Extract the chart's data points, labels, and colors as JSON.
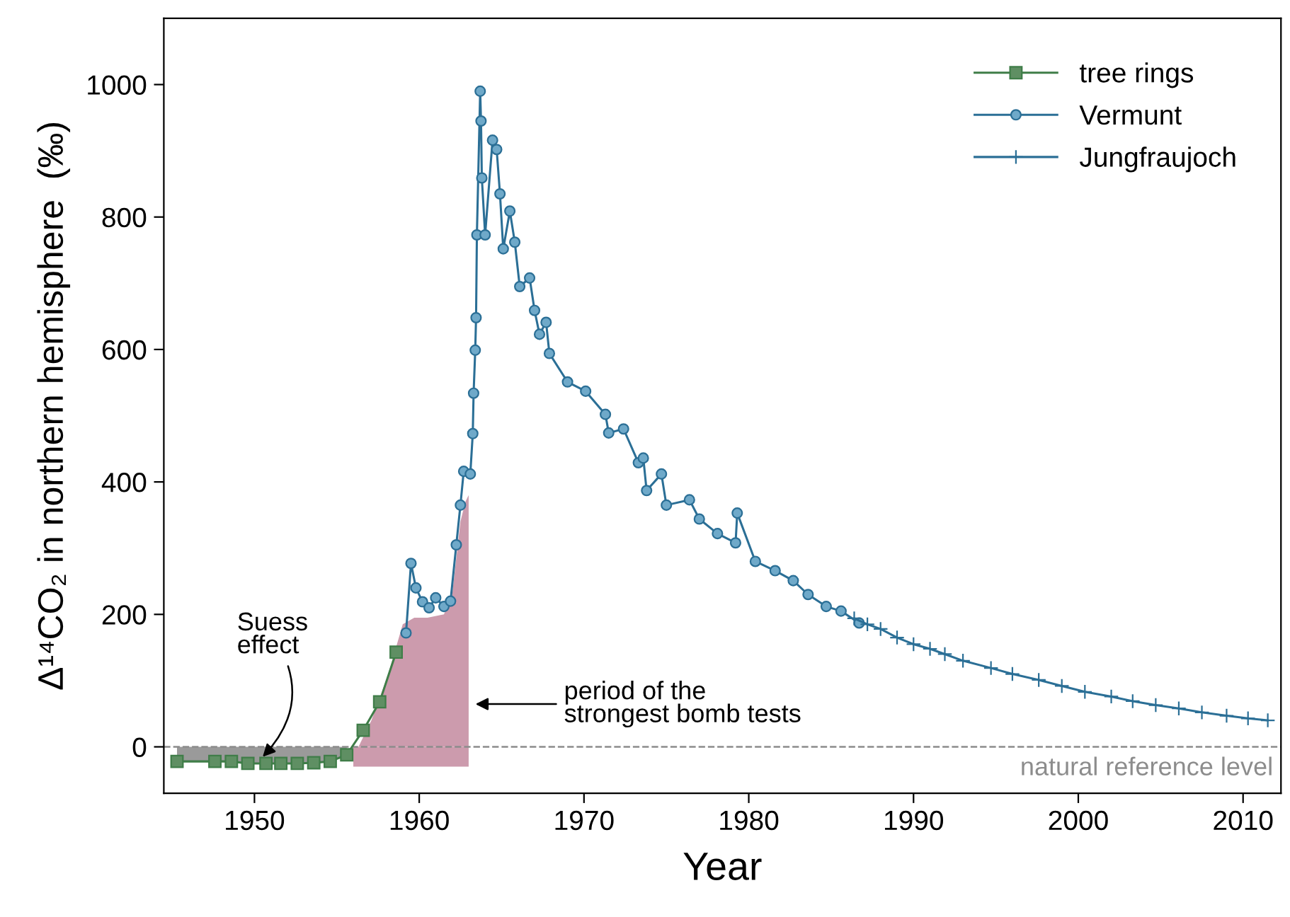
{
  "chart_data": {
    "type": "line",
    "xlabel": "Year",
    "ylabel": "Δ¹⁴CO₂ in northern hemisphere  (‰)",
    "xlim": [
      1944.5,
      2012.3
    ],
    "ylim": [
      -70,
      1100
    ],
    "xticks": [
      1950,
      1960,
      1970,
      1980,
      1990,
      2000,
      2010
    ],
    "yticks": [
      0,
      200,
      400,
      600,
      800,
      1000
    ],
    "grid": false,
    "legend": "top right",
    "series": [
      {
        "name": "tree rings",
        "marker": "square",
        "line_style": "solid",
        "color": "#3f7d48",
        "x": [
          1945.3,
          1947.6,
          1948.6,
          1949.6,
          1950.7,
          1951.6,
          1952.6,
          1953.6,
          1954.6,
          1955.6,
          1956.6,
          1957.6,
          1958.6
        ],
        "values": [
          -22,
          -22,
          -22,
          -25,
          -25,
          -25,
          -25,
          -24,
          -22,
          -12,
          25,
          68,
          143
        ]
      },
      {
        "name": "Vermunt",
        "marker": "circle",
        "line_style": "solid",
        "color": "#2b6f96",
        "x": [
          1959.2,
          1959.5,
          1959.8,
          1960.2,
          1960.6,
          1961.0,
          1961.5,
          1961.9,
          1962.25,
          1962.5,
          1962.7,
          1963.1,
          1963.25,
          1963.3,
          1963.4,
          1963.45,
          1963.5,
          1963.7,
          1963.75,
          1963.8,
          1964.0,
          1964.45,
          1964.7,
          1964.9,
          1965.1,
          1965.5,
          1965.8,
          1966.1,
          1966.7,
          1967.0,
          1967.3,
          1967.7,
          1967.9,
          1969.0,
          1970.1,
          1971.3,
          1971.5,
          1972.4,
          1973.3,
          1973.6,
          1973.8,
          1974.7,
          1975.0,
          1976.4,
          1977.0,
          1978.1,
          1979.2,
          1979.3,
          1980.4,
          1981.6,
          1982.7,
          1983.6,
          1984.7,
          1985.6,
          1986.7
        ],
        "values": [
          172,
          277,
          240,
          219,
          210,
          225,
          212,
          220,
          305,
          365,
          416,
          412,
          473,
          534,
          599,
          648,
          773,
          990,
          945,
          859,
          773,
          916,
          902,
          835,
          752,
          809,
          762,
          695,
          708,
          659,
          623,
          641,
          594,
          551,
          537,
          502,
          474,
          480,
          429,
          436,
          387,
          412,
          365,
          373,
          344,
          322,
          308,
          353,
          280,
          266,
          251,
          230,
          212,
          205,
          187
        ]
      },
      {
        "name": "Jungfraujoch",
        "marker": "cross",
        "line_style": "solid",
        "color": "#2b6f96",
        "x": [
          1986.4,
          1987.2,
          1988.0,
          1989.0,
          1990.0,
          1991.0,
          1991.9,
          1993.0,
          1994.7,
          1996.0,
          1997.6,
          1999.0,
          2000.4,
          2002.0,
          2003.3,
          2004.7,
          2006.1,
          2007.5,
          2009.0,
          2010.3,
          2011.5
        ],
        "values": [
          194,
          185,
          178,
          165,
          155,
          148,
          140,
          130,
          119,
          110,
          101,
          92,
          83,
          76,
          69,
          63,
          58,
          52,
          47,
          43,
          40
        ]
      },
      {
        "type": "area",
        "color": "#cc9bad",
        "x": [
          1956.0,
          1957.1,
          1958.1,
          1959.0,
          1959.7,
          1960.5,
          1961.5,
          1962.0,
          1962.5,
          1962.8,
          1963.0
        ],
        "values": [
          -16,
          40,
          108,
          185,
          195,
          195,
          200,
          230,
          340,
          370,
          380
        ]
      },
      {
        "type": "area",
        "color": "#cc9bad",
        "x": [
          1956.0,
          1963.0
        ],
        "values": [
          -30,
          -30
        ]
      },
      {
        "type": "area",
        "color": "#9a9a9a",
        "x": [
          1945.3,
          1947.6,
          1948.6,
          1949.6,
          1950.7,
          1951.6,
          1952.6,
          1953.6,
          1954.6,
          1955.6
        ],
        "values": [
          -22,
          -22,
          -22,
          -25,
          -25,
          -25,
          -25,
          -24,
          -22,
          -12
        ]
      }
    ],
    "ref_lines": [
      {
        "axis": "y",
        "value": 0,
        "label": "natural reference level",
        "color": "#8c8c8c",
        "line_style": "dashed"
      }
    ],
    "annotations": [
      {
        "text": "Suess\neffect",
        "x": 1950.5,
        "y": -15
      },
      "period of the\nstrongest bomb tests"
    ]
  }
}
